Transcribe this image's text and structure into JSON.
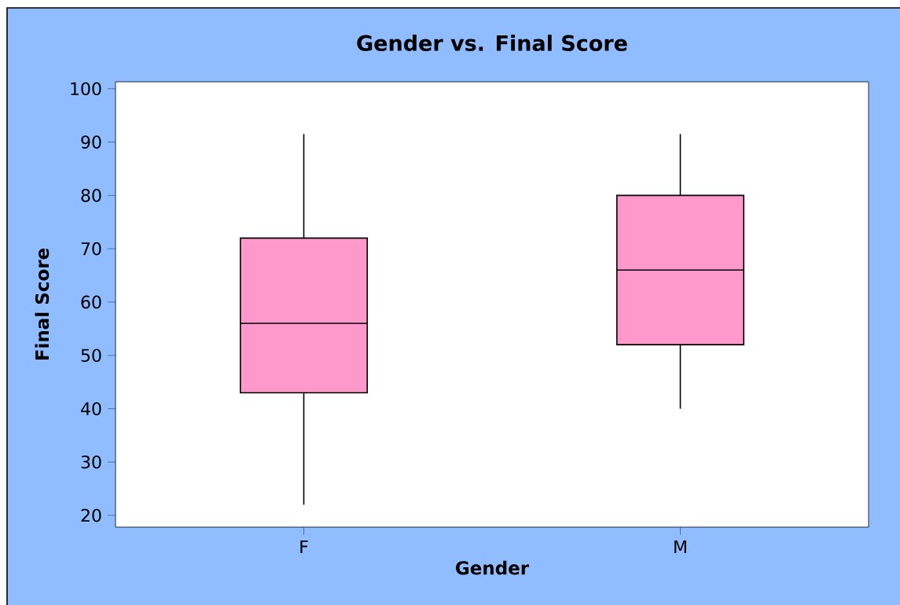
{
  "chart_data": {
    "type": "box",
    "title": "Gender vs. Final Score",
    "xlabel": "Gender",
    "ylabel": "Final Score",
    "categories": [
      "F",
      "M"
    ],
    "series": [
      {
        "color": "#ff99cc",
        "boxes": [
          {
            "low": 22,
            "q1": 43,
            "median": 56,
            "q3": 72,
            "high": 91.5
          },
          {
            "low": 40,
            "q1": 52,
            "median": 66,
            "q3": 80,
            "high": 91.5
          }
        ]
      }
    ],
    "ylim": [
      17.8,
      101.3
    ],
    "yticks": [
      20,
      30,
      40,
      50,
      60,
      70,
      80,
      90,
      100
    ]
  }
}
